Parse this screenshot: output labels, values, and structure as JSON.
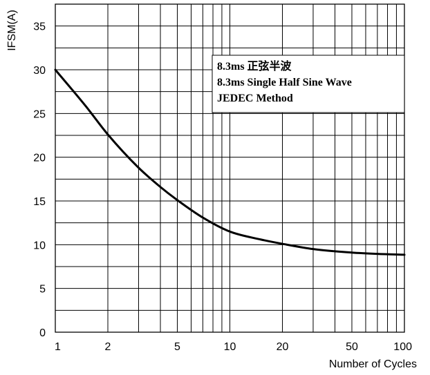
{
  "chart_data": {
    "type": "line",
    "xscale": "log",
    "xlim": [
      1,
      100
    ],
    "ylim": [
      0,
      37.5
    ],
    "xlabel": "Number of Cycles",
    "ylabel": "IFSM(A)",
    "xticks": [
      "1",
      "2",
      "5",
      "10",
      "20",
      "50",
      "100"
    ],
    "yticks": [
      "0",
      "5",
      "10",
      "15",
      "20",
      "25",
      "30",
      "35"
    ],
    "grid": true,
    "annotation": [
      "8.3ms 正弦半波",
      "8.3ms Single Half Sine Wave",
      "JEDEC Method"
    ],
    "series": [
      {
        "x": [
          1,
          1.5,
          2,
          3,
          4,
          5,
          7,
          10,
          15,
          20,
          30,
          50,
          70,
          100
        ],
        "y": [
          30,
          25.8,
          22.6,
          18.8,
          16.6,
          15.1,
          13.1,
          11.5,
          10.6,
          10.1,
          9.5,
          9.1,
          8.95,
          8.85
        ]
      }
    ]
  }
}
